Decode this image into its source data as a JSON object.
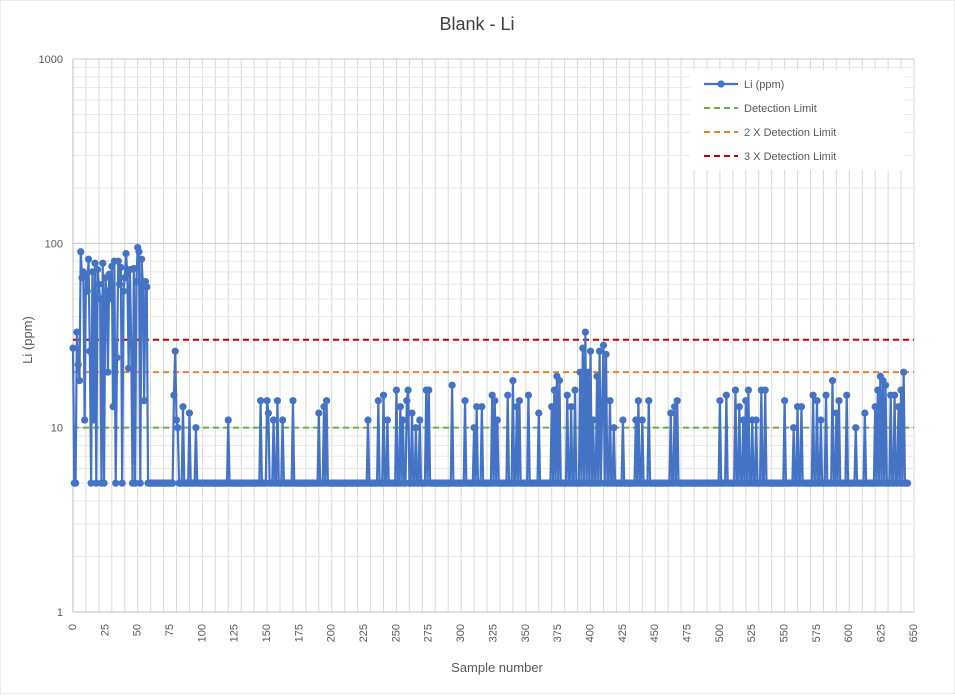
{
  "chart_data": {
    "type": "line",
    "title": "Blank - Li",
    "xlabel": "Sample number",
    "ylabel": "Li (ppm)",
    "yscale": "log",
    "xlim": [
      0,
      650
    ],
    "ylim": [
      1,
      1000
    ],
    "x_ticks": [
      0,
      25,
      50,
      75,
      100,
      125,
      150,
      175,
      200,
      225,
      250,
      275,
      300,
      325,
      350,
      375,
      400,
      425,
      450,
      475,
      500,
      525,
      550,
      575,
      600,
      625,
      650
    ],
    "y_ticks": [
      1,
      10,
      100,
      1000
    ],
    "grid": true,
    "legend": "top-right",
    "baseline": 5,
    "series": [
      {
        "name": "Li (ppm)",
        "color": "#4472c4",
        "marker": "circle",
        "points": [
          [
            0,
            27
          ],
          [
            1,
            5
          ],
          [
            2,
            5
          ],
          [
            3,
            33
          ],
          [
            4,
            22
          ],
          [
            5,
            18
          ],
          [
            6,
            90
          ],
          [
            7,
            65
          ],
          [
            8,
            70
          ],
          [
            9,
            11
          ],
          [
            10,
            68
          ],
          [
            11,
            55
          ],
          [
            12,
            82
          ],
          [
            13,
            26
          ],
          [
            14,
            5
          ],
          [
            15,
            70
          ],
          [
            16,
            11
          ],
          [
            17,
            78
          ],
          [
            18,
            5
          ],
          [
            19,
            72
          ],
          [
            20,
            60
          ],
          [
            21,
            50
          ],
          [
            22,
            5
          ],
          [
            23,
            78
          ],
          [
            24,
            5
          ],
          [
            25,
            65
          ],
          [
            26,
            55
          ],
          [
            27,
            20
          ],
          [
            28,
            68
          ],
          [
            29,
            50
          ],
          [
            30,
            75
          ],
          [
            31,
            13
          ],
          [
            32,
            80
          ],
          [
            33,
            5
          ],
          [
            34,
            24
          ],
          [
            35,
            80
          ],
          [
            36,
            60
          ],
          [
            37,
            74
          ],
          [
            38,
            5
          ],
          [
            39,
            55
          ],
          [
            40,
            65
          ],
          [
            41,
            88
          ],
          [
            42,
            68
          ],
          [
            43,
            21
          ],
          [
            44,
            72
          ],
          [
            45,
            28
          ],
          [
            46,
            5
          ],
          [
            47,
            73
          ],
          [
            48,
            5
          ],
          [
            49,
            62
          ],
          [
            50,
            95
          ],
          [
            51,
            90
          ],
          [
            52,
            5
          ],
          [
            53,
            82
          ],
          [
            54,
            60
          ],
          [
            55,
            14
          ],
          [
            56,
            62
          ],
          [
            57,
            58
          ],
          [
            58,
            5
          ],
          [
            59,
            5
          ],
          [
            60,
            5
          ],
          [
            78,
            15
          ],
          [
            79,
            26
          ],
          [
            80,
            11
          ],
          [
            81,
            10
          ],
          [
            82,
            5
          ],
          [
            85,
            13
          ],
          [
            90,
            12
          ],
          [
            95,
            10
          ],
          [
            100,
            5
          ],
          [
            120,
            11
          ],
          [
            140,
            5
          ],
          [
            145,
            14
          ],
          [
            150,
            14
          ],
          [
            151,
            12
          ],
          [
            155,
            11
          ],
          [
            158,
            14
          ],
          [
            162,
            11
          ],
          [
            170,
            14
          ],
          [
            190,
            12
          ],
          [
            194,
            13
          ],
          [
            196,
            14
          ],
          [
            205,
            5
          ],
          [
            228,
            11
          ],
          [
            236,
            14
          ],
          [
            240,
            15
          ],
          [
            243,
            11
          ],
          [
            250,
            16
          ],
          [
            253,
            13
          ],
          [
            255,
            11
          ],
          [
            258,
            14
          ],
          [
            259,
            16
          ],
          [
            262,
            12
          ],
          [
            265,
            10
          ],
          [
            268,
            11
          ],
          [
            273,
            16
          ],
          [
            275,
            16
          ],
          [
            293,
            17
          ],
          [
            303,
            14
          ],
          [
            310,
            10
          ],
          [
            312,
            13
          ],
          [
            316,
            13
          ],
          [
            324,
            15
          ],
          [
            326,
            14
          ],
          [
            328,
            11
          ],
          [
            336,
            15
          ],
          [
            340,
            18
          ],
          [
            343,
            13
          ],
          [
            345,
            14
          ],
          [
            352,
            15
          ],
          [
            360,
            12
          ],
          [
            370,
            13
          ],
          [
            372,
            16
          ],
          [
            374,
            19
          ],
          [
            376,
            18
          ],
          [
            382,
            15
          ],
          [
            385,
            13
          ],
          [
            388,
            16
          ],
          [
            392,
            20
          ],
          [
            394,
            27
          ],
          [
            396,
            33
          ],
          [
            398,
            20
          ],
          [
            400,
            26
          ],
          [
            402,
            11
          ],
          [
            405,
            19
          ],
          [
            407,
            26
          ],
          [
            409,
            13
          ],
          [
            410,
            28
          ],
          [
            412,
            25
          ],
          [
            415,
            14
          ],
          [
            418,
            10
          ],
          [
            425,
            11
          ],
          [
            435,
            11
          ],
          [
            437,
            14
          ],
          [
            440,
            11
          ],
          [
            445,
            14
          ],
          [
            462,
            12
          ],
          [
            465,
            13
          ],
          [
            467,
            14
          ],
          [
            500,
            14
          ],
          [
            505,
            15
          ],
          [
            512,
            16
          ],
          [
            515,
            13
          ],
          [
            518,
            11
          ],
          [
            520,
            14
          ],
          [
            522,
            16
          ],
          [
            525,
            11
          ],
          [
            528,
            11
          ],
          [
            532,
            16
          ],
          [
            535,
            16
          ],
          [
            550,
            14
          ],
          [
            557,
            10
          ],
          [
            560,
            13
          ],
          [
            563,
            13
          ],
          [
            572,
            15
          ],
          [
            575,
            14
          ],
          [
            578,
            11
          ],
          [
            582,
            15
          ],
          [
            587,
            18
          ],
          [
            590,
            12
          ],
          [
            592,
            14
          ],
          [
            598,
            15
          ],
          [
            605,
            10
          ],
          [
            612,
            12
          ],
          [
            620,
            13
          ],
          [
            622,
            16
          ],
          [
            624,
            19
          ],
          [
            626,
            18
          ],
          [
            628,
            17
          ],
          [
            632,
            15
          ],
          [
            635,
            15
          ],
          [
            638,
            13
          ],
          [
            640,
            16
          ],
          [
            642,
            20
          ],
          [
            645,
            5
          ]
        ]
      },
      {
        "name": "Detection Limit",
        "color": "#70ad47",
        "style": "dashed",
        "value": 10
      },
      {
        "name": "2 X Detection Limit",
        "color": "#ed7d31",
        "style": "dashed",
        "value": 20
      },
      {
        "name": "3 X Detection Limit",
        "color": "#c00000",
        "style": "dashed",
        "value": 30
      }
    ]
  },
  "colors": {
    "gridline": "#d9d9d9",
    "axis_text": "#595959",
    "title_text": "#404040"
  }
}
